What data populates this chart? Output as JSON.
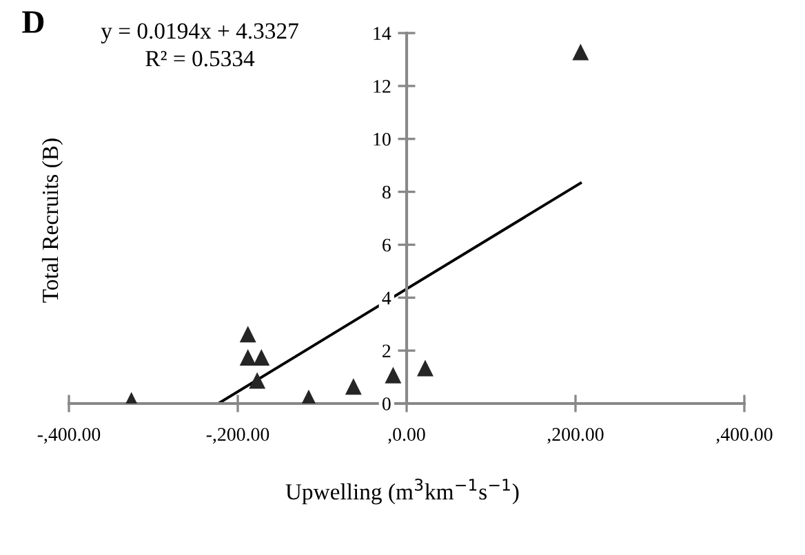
{
  "chart_data": {
    "type": "scatter",
    "title": "D",
    "xlabel": "Upwelling (m$^{3}$km$^{−1}$s$^{−1}$)",
    "ylabel": "Total Recruits (B)",
    "annotations": [
      "y = 0.0194x + 4.3327",
      "R² = 0.5334"
    ],
    "xlim": [
      -400,
      400
    ],
    "xticks": [
      {
        "value": -400,
        "label": "-,400.00"
      },
      {
        "value": -200,
        "label": "-,200.00"
      },
      {
        "value": 0,
        "label": ",0.00"
      },
      {
        "value": 200,
        "label": ",200.00"
      },
      {
        "value": 400,
        "label": ",400.00"
      }
    ],
    "ylim": [
      0,
      14
    ],
    "yticks": [
      0,
      2,
      4,
      6,
      8,
      10,
      12,
      14
    ],
    "grid": false,
    "legend": false,
    "marker": "triangle",
    "series": [
      {
        "color": "#262626",
        "x": [
          -326,
          -188,
          -188,
          -172,
          -177,
          -116,
          -63,
          -16,
          22,
          206
        ],
        "values": [
          0.1,
          2.6,
          1.72,
          1.72,
          0.85,
          0.19,
          0.62,
          1.05,
          1.32,
          13.26
        ]
      },
      {
        "type": "line",
        "color": "#000000",
        "marker": "none",
        "line_style": "solid",
        "x": [
          -223,
          206
        ],
        "values": [
          0,
          8.33
        ]
      }
    ]
  }
}
